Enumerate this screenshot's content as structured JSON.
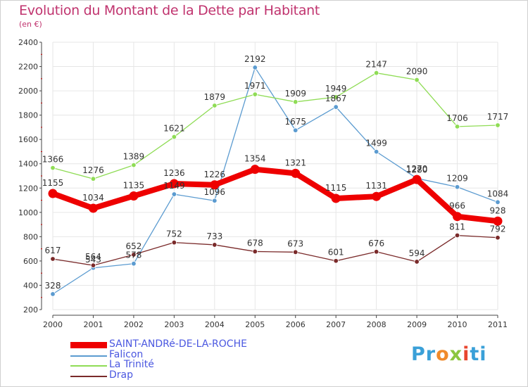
{
  "title": "Evolution du Montant de la Dette par Habitant",
  "subtitle": "(en €)",
  "logo": "Proxiti",
  "colors": {
    "title": "#c0336e",
    "axis_text": "#333333",
    "grid": "#e6e6e6",
    "axis_tick": "#cc0000",
    "legend_text": "#4a57e0"
  },
  "chart_data": {
    "type": "line",
    "title": "Evolution du Montant de la Dette par Habitant",
    "subtitle": "(en €)",
    "xlabel": "",
    "ylabel": "",
    "categories": [
      "2000",
      "2001",
      "2002",
      "2003",
      "2004",
      "2005",
      "2006",
      "2007",
      "2008",
      "2009",
      "2010",
      "2011"
    ],
    "ylim": [
      200,
      2400
    ],
    "yticks": [
      200,
      400,
      600,
      800,
      1000,
      1200,
      1400,
      1600,
      1800,
      2000,
      2200,
      2400
    ],
    "grid": true,
    "legend_position": "bottom-left",
    "series": [
      {
        "name": "SAINT-ANDRé-DE-LA-ROCHE",
        "color": "#ee0000",
        "emphasis": true,
        "values": [
          1155,
          1034,
          1135,
          1236,
          1226,
          1354,
          1321,
          1115,
          1131,
          1270,
          966,
          928
        ]
      },
      {
        "name": "Falicon",
        "color": "#5b9bd0",
        "emphasis": false,
        "values": [
          328,
          543,
          578,
          1149,
          1096,
          2192,
          1675,
          1867,
          1499,
          1280,
          1209,
          1084
        ]
      },
      {
        "name": "La Trinité",
        "color": "#8fdc55",
        "emphasis": false,
        "values": [
          1366,
          1276,
          1389,
          1621,
          1879,
          1971,
          1909,
          1949,
          2147,
          2090,
          1706,
          1717
        ]
      },
      {
        "name": "Drap",
        "color": "#7a2a2a",
        "emphasis": false,
        "values": [
          617,
          564,
          652,
          752,
          733,
          678,
          673,
          601,
          676,
          594,
          811,
          792
        ]
      }
    ]
  }
}
